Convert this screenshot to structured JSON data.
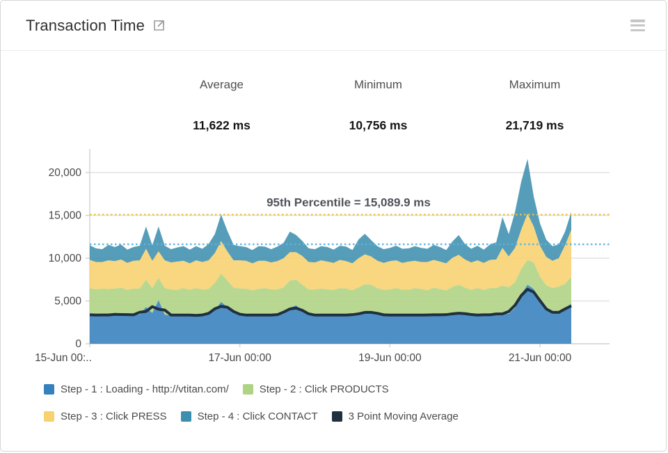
{
  "header": {
    "title": "Transaction Time",
    "icons": {
      "open": "external-link-icon",
      "menu": "hamburger-menu-icon"
    }
  },
  "stats": [
    {
      "label": "Average",
      "value": "11,622 ms"
    },
    {
      "label": "Minimum",
      "value": "10,756 ms"
    },
    {
      "label": "Maximum",
      "value": "21,719 ms"
    }
  ],
  "colors": {
    "grid": "#e2e2e2",
    "axis": "#cfcfcf",
    "tick_text": "#474747",
    "annotation_text": "#4d5359",
    "percentile_line": "#e9c43e",
    "average_line": "#5fb2e3"
  },
  "chart_data": {
    "type": "area",
    "stacked": true,
    "title": "",
    "xlabel": "",
    "ylabel": "",
    "ylim": [
      0,
      22000
    ],
    "grid": true,
    "legend_position": "bottom",
    "x_start_hour": 0,
    "x_step_hours": 2,
    "y_ticks": [
      0,
      5000,
      10000,
      15000,
      20000
    ],
    "y_tick_labels": [
      "0",
      "5,000",
      "10,000",
      "15,000",
      "20,000"
    ],
    "x_tick_labels": [
      {
        "hour": 0,
        "label": "15-Jun 00:.."
      },
      {
        "hour": 48,
        "label": "17-Jun 00:00"
      },
      {
        "hour": 96,
        "label": "19-Jun 00:00"
      },
      {
        "hour": 144,
        "label": "21-Jun 00:00"
      }
    ],
    "annotations": [
      {
        "type": "hline",
        "value": 15089.9,
        "label": "95th Percentile = 15,089.9 ms",
        "color": "#e9c43e",
        "style": "dotted"
      },
      {
        "type": "hline",
        "value": 11622,
        "label": "",
        "color": "#5fb2e3",
        "style": "dotted"
      }
    ],
    "moving_average": {
      "name": "3 Point Moving Average",
      "window": 3,
      "source": "Step - 1",
      "color": "#21303e"
    },
    "series": [
      {
        "name": "Step - 1 : Loading - http://vtitan.com/",
        "color": "#3581bd",
        "values": [
          3400,
          3350,
          3300,
          3450,
          3350,
          3500,
          3400,
          3300,
          3450,
          4300,
          3600,
          5100,
          3400,
          3300,
          3350,
          3400,
          3300,
          3350,
          3300,
          3450,
          3900,
          4900,
          4300,
          3600,
          3400,
          3350,
          3300,
          3400,
          3350,
          3300,
          3400,
          3500,
          4200,
          4500,
          3800,
          3400,
          3300,
          3350,
          3400,
          3300,
          3350,
          3400,
          3300,
          3500,
          3700,
          3800,
          3500,
          3350,
          3300,
          3400,
          3350,
          3300,
          3400,
          3350,
          3300,
          3450,
          3400,
          3300,
          3500,
          3700,
          3500,
          3350,
          3400,
          3300,
          3450,
          3400,
          3600,
          3500,
          4200,
          5800,
          6900,
          6400,
          4800,
          3900,
          3500,
          3600,
          3900,
          4700
        ]
      },
      {
        "name": "Step - 2 : Click PRODUCTS",
        "color": "#aed383",
        "values": [
          3100,
          3000,
          3150,
          2950,
          3100,
          3050,
          2900,
          3150,
          3000,
          3200,
          2900,
          2600,
          3100,
          3050,
          2950,
          3100,
          3000,
          3150,
          3050,
          2950,
          3200,
          3300,
          3100,
          2950,
          3050,
          3100,
          2950,
          3000,
          3150,
          3050,
          2950,
          3100,
          3200,
          3000,
          3100,
          2950,
          3050,
          3100,
          2950,
          3000,
          3150,
          3050,
          2950,
          3100,
          3250,
          3100,
          3000,
          2950,
          3050,
          3100,
          2950,
          3000,
          3100,
          3050,
          2950,
          3100,
          3000,
          2950,
          3150,
          3200,
          3050,
          2950,
          3100,
          3000,
          3050,
          3100,
          3200,
          3100,
          3000,
          2950,
          2900,
          3100,
          3050,
          2950,
          3000,
          3100,
          3100,
          3100
        ]
      },
      {
        "name": "Step - 3 : Click PRESS",
        "color": "#f7d26e",
        "values": [
          3300,
          3200,
          3100,
          3350,
          3200,
          3300,
          3150,
          3250,
          3300,
          3600,
          3200,
          3100,
          3250,
          3150,
          3300,
          3200,
          3100,
          3250,
          3200,
          3350,
          3500,
          3800,
          3400,
          3200,
          3300,
          3250,
          3150,
          3300,
          3200,
          3150,
          3300,
          3400,
          3300,
          3200,
          3350,
          3200,
          3150,
          3300,
          3250,
          3150,
          3300,
          3200,
          3150,
          3400,
          3500,
          3300,
          3200,
          3150,
          3300,
          3250,
          3150,
          3300,
          3200,
          3150,
          3300,
          3250,
          3200,
          3150,
          3400,
          3500,
          3300,
          3200,
          3250,
          3150,
          3300,
          3350,
          4400,
          3600,
          4000,
          4600,
          5400,
          4200,
          3600,
          3300,
          3200,
          3300,
          4500,
          5500
        ]
      },
      {
        "name": "Step - 4 : Click CONTACT",
        "color": "#3d8fae",
        "values": [
          1700,
          1600,
          1500,
          1800,
          1650,
          1750,
          1550,
          1600,
          1700,
          2600,
          1800,
          2900,
          1700,
          1550,
          1650,
          1700,
          1600,
          1650,
          1550,
          1900,
          2200,
          3100,
          2400,
          1800,
          1650,
          1600,
          1550,
          1700,
          1650,
          1550,
          1700,
          1800,
          2400,
          2000,
          1750,
          1600,
          1550,
          1650,
          1700,
          1550,
          1650,
          1700,
          1550,
          2200,
          2400,
          1900,
          1700,
          1600,
          1550,
          1700,
          1650,
          1550,
          1700,
          1650,
          1550,
          1750,
          1700,
          1550,
          1900,
          2300,
          1800,
          1600,
          1700,
          1550,
          1800,
          2000,
          3600,
          2600,
          4200,
          5600,
          6400,
          3500,
          2600,
          2000,
          1700,
          1600,
          1600,
          2100
        ]
      }
    ]
  },
  "legend": {
    "rows": [
      [
        {
          "label": "Step - 1 : Loading - http://vtitan.com/",
          "color": "#3581bd"
        },
        {
          "label": "Step - 2 : Click PRODUCTS",
          "color": "#aed383"
        }
      ],
      [
        {
          "label": "Step - 3 : Click PRESS",
          "color": "#f7d26e"
        },
        {
          "label": "Step - 4 : Click CONTACT",
          "color": "#3d8fae"
        },
        {
          "label": "3 Point Moving Average",
          "color": "#21303e"
        }
      ]
    ]
  }
}
